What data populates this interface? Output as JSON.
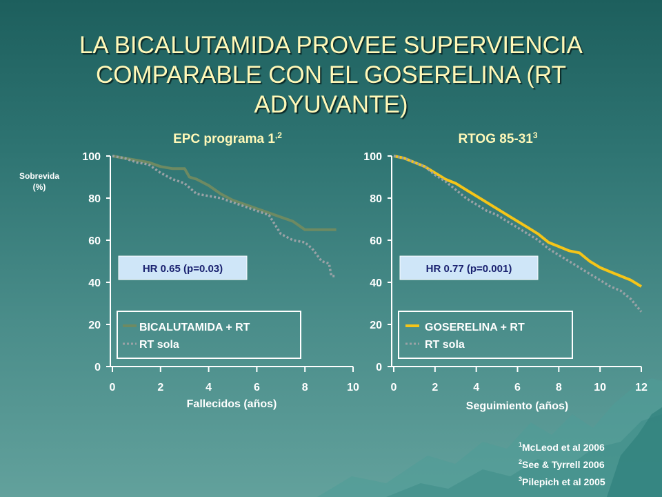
{
  "slide": {
    "title": "LA BICALUTAMIDA PROVEE SUPERVIENCIA COMPARABLE CON EL GOSERELINA (RT ADYUVANTE)",
    "references": [
      {
        "sup": "1",
        "text": "McLeod et al 2006"
      },
      {
        "sup": "2",
        "text": "See & Tyrrell 2006"
      },
      {
        "sup": "3",
        "text": "Pilepich et al 2005"
      }
    ],
    "colors": {
      "title": "#fff8b8",
      "bicalutamida": "#6e8a62",
      "rt_sola": "#9aa2a6",
      "goserelina": "#f5c518",
      "hr_box": "#cfe6f8",
      "hr_text": "#1a2270",
      "subtitle": "#fff8b8"
    }
  },
  "chart_data": [
    {
      "type": "line",
      "title": "EPC programa 1",
      "title_sup": ",2",
      "ylabel": "Sobrevida\n(%)",
      "xlabel": "Fallecidos (años)",
      "xlim": [
        0,
        10
      ],
      "ylim": [
        0,
        100
      ],
      "xticks": [
        0,
        2,
        4,
        6,
        8,
        10
      ],
      "yticks": [
        0,
        20,
        40,
        60,
        80,
        100
      ],
      "annotation": "HR 0.65 (p=0.03)",
      "legend": {
        "placement": "bottom",
        "entries": [
          "BICALUTAMIDA + RT",
          "RT sola"
        ]
      },
      "series": [
        {
          "name": "BICALUTAMIDA + RT",
          "style": "solid",
          "color": "#6e8a62",
          "points": [
            [
              0,
              100
            ],
            [
              0.5,
              99
            ],
            [
              1,
              98
            ],
            [
              1.5,
              97
            ],
            [
              2,
              95
            ],
            [
              2.5,
              94
            ],
            [
              3,
              94
            ],
            [
              3.2,
              90
            ],
            [
              3.5,
              89
            ],
            [
              4,
              86
            ],
            [
              4.5,
              82
            ],
            [
              5,
              79
            ],
            [
              5.5,
              77
            ],
            [
              6,
              75
            ],
            [
              6.5,
              73
            ],
            [
              7,
              71
            ],
            [
              7.5,
              69
            ],
            [
              8,
              65
            ],
            [
              8.5,
              65
            ],
            [
              9,
              65
            ],
            [
              9.3,
              65
            ]
          ]
        },
        {
          "name": "RT sola",
          "style": "dotted",
          "color": "#9aa2a6",
          "points": [
            [
              0,
              100
            ],
            [
              0.5,
              99
            ],
            [
              1,
              97
            ],
            [
              1.5,
              96
            ],
            [
              2,
              92
            ],
            [
              2.5,
              89
            ],
            [
              3,
              87
            ],
            [
              3.5,
              82
            ],
            [
              4,
              81
            ],
            [
              4.5,
              80
            ],
            [
              5,
              78
            ],
            [
              5.5,
              76
            ],
            [
              6,
              74
            ],
            [
              6.5,
              72
            ],
            [
              7,
              63
            ],
            [
              7.5,
              60
            ],
            [
              8,
              59
            ],
            [
              8.3,
              56
            ],
            [
              8.7,
              50
            ],
            [
              9,
              49
            ],
            [
              9.1,
              43
            ],
            [
              9.3,
              43
            ]
          ]
        }
      ]
    },
    {
      "type": "line",
      "title": "RTOG 85-31",
      "title_sup": "3",
      "xlabel": "Seguimiento (años)",
      "xlim": [
        0,
        12
      ],
      "ylim": [
        0,
        100
      ],
      "xticks": [
        0,
        2,
        4,
        6,
        8,
        10,
        12
      ],
      "yticks": [
        0,
        20,
        40,
        60,
        80,
        100
      ],
      "annotation": "HR 0.77 (p=0.001)",
      "legend": {
        "placement": "bottom",
        "entries": [
          "GOSERELINA + RT",
          "RT sola"
        ]
      },
      "series": [
        {
          "name": "GOSERELINA + RT",
          "style": "solid",
          "color": "#f5c518",
          "points": [
            [
              0,
              100
            ],
            [
              0.5,
              99
            ],
            [
              1,
              97
            ],
            [
              1.5,
              95
            ],
            [
              2,
              92
            ],
            [
              2.5,
              89
            ],
            [
              3,
              87
            ],
            [
              3.5,
              84
            ],
            [
              4,
              81
            ],
            [
              4.5,
              78
            ],
            [
              5,
              75
            ],
            [
              5.5,
              72
            ],
            [
              6,
              69
            ],
            [
              6.5,
              66
            ],
            [
              7,
              63
            ],
            [
              7.5,
              59
            ],
            [
              8,
              57
            ],
            [
              8.5,
              55
            ],
            [
              9,
              54
            ],
            [
              9.5,
              50
            ],
            [
              10,
              47
            ],
            [
              10.5,
              45
            ],
            [
              11,
              43
            ],
            [
              11.5,
              41
            ],
            [
              12,
              38
            ]
          ]
        },
        {
          "name": "RT sola",
          "style": "dotted",
          "color": "#9aa2a6",
          "points": [
            [
              0,
              100
            ],
            [
              0.5,
              99
            ],
            [
              1,
              97
            ],
            [
              1.5,
              95
            ],
            [
              2,
              91
            ],
            [
              2.5,
              88
            ],
            [
              3,
              84
            ],
            [
              3.5,
              80
            ],
            [
              4,
              77
            ],
            [
              4.5,
              74
            ],
            [
              5,
              72
            ],
            [
              5.5,
              69
            ],
            [
              6,
              66
            ],
            [
              6.5,
              63
            ],
            [
              7,
              60
            ],
            [
              7.5,
              56
            ],
            [
              8,
              53
            ],
            [
              8.5,
              50
            ],
            [
              9,
              47
            ],
            [
              9.5,
              44
            ],
            [
              10,
              41
            ],
            [
              10.5,
              38
            ],
            [
              11,
              36
            ],
            [
              11.5,
              32
            ],
            [
              12,
              26
            ]
          ]
        }
      ]
    }
  ]
}
